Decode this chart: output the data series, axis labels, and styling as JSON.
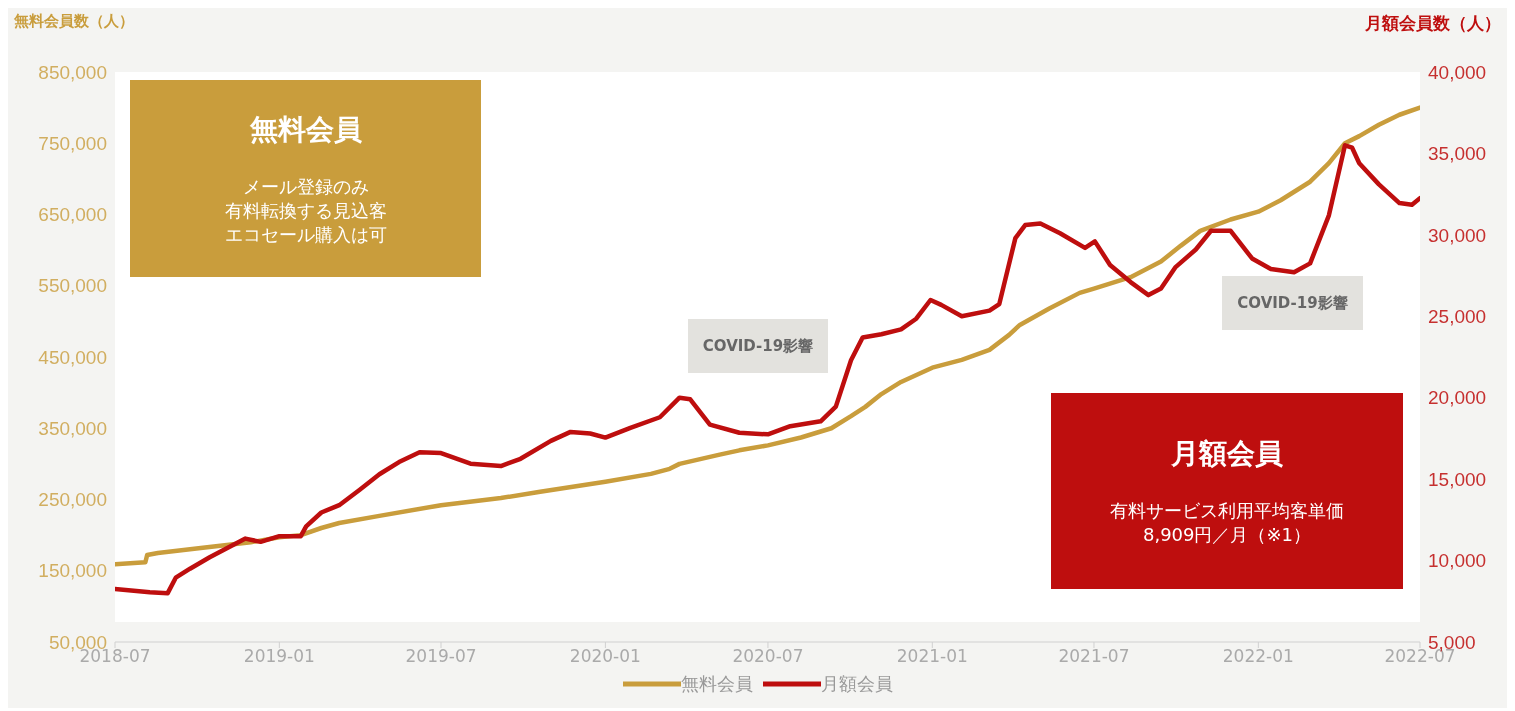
{
  "chart_data": {
    "type": "line",
    "ylabel": "無料会員数（人）",
    "y2label": "月額会員数（人）",
    "xlim": [
      "2018-07",
      "2022-07"
    ],
    "xticks": [
      "2018-07",
      "2019-01",
      "2019-07",
      "2020-01",
      "2020-07",
      "2021-01",
      "2021-07",
      "2022-01",
      "2022-07"
    ],
    "ylim": [
      50000,
      850000
    ],
    "yticks": [
      {
        "value": 50000,
        "label": "50,000"
      },
      {
        "value": 150000,
        "label": "150,000"
      },
      {
        "value": 250000,
        "label": "250,000"
      },
      {
        "value": 350000,
        "label": "350,000"
      },
      {
        "value": 450000,
        "label": "450,000"
      },
      {
        "value": 550000,
        "label": "550,000"
      },
      {
        "value": 650000,
        "label": "650,000"
      },
      {
        "value": 750000,
        "label": "750,000"
      },
      {
        "value": 850000,
        "label": "850,000"
      }
    ],
    "y2lim": [
      5000,
      40000
    ],
    "y2ticks": [
      {
        "value": 5000,
        "label": "5,000"
      },
      {
        "value": 10000,
        "label": "10,000"
      },
      {
        "value": 15000,
        "label": "15,000"
      },
      {
        "value": 20000,
        "label": "20,000"
      },
      {
        "value": 25000,
        "label": "25,000"
      },
      {
        "value": 30000,
        "label": "30,000"
      },
      {
        "value": 35000,
        "label": "35,000"
      },
      {
        "value": 40000,
        "label": "40,000"
      }
    ],
    "legend": "bottom",
    "marker": "none",
    "line_style": "solid",
    "annotations": [
      "無料会員",
      "メール登録のみ",
      "有料転換する見込客",
      "エコセール購入は可",
      "COVID-19影響",
      "COVID-19影響",
      "月額会員",
      "有料サービス利用平均客単価",
      "8,909円／月（※1）"
    ],
    "series": [
      {
        "name": "無料会員",
        "color": "#c99d3c",
        "x": [
          "2018-07-01",
          "2018-08-04",
          "2018-08-06",
          "2018-08-18",
          "2018-10-05",
          "2018-11-30",
          "2019-01-01",
          "2019-01-25",
          "2019-02-17",
          "2019-03-09",
          "2019-04-23",
          "2019-07-01",
          "2019-09-06",
          "2019-10-20",
          "2020-01-01",
          "2020-02-21",
          "2020-03-13",
          "2020-03-24",
          "2020-05-08",
          "2020-05-30",
          "2020-07-01",
          "2020-08-07",
          "2020-09-10",
          "2020-10-02",
          "2020-10-18",
          "2020-11-05",
          "2020-11-27",
          "2021-01-01",
          "2021-02-03",
          "2021-03-06",
          "2021-03-28",
          "2021-04-09",
          "2021-05-12",
          "2021-06-15",
          "2021-07-01",
          "2021-08-11",
          "2021-09-14",
          "2021-10-06",
          "2021-10-28",
          "2021-12-01",
          "2022-01-01",
          "2022-01-26",
          "2022-02-28",
          "2022-03-21",
          "2022-04-08",
          "2022-04-24",
          "2022-05-16",
          "2022-06-08",
          "2022-07-01"
        ],
        "values": [
          159000,
          162000,
          172000,
          175000,
          182000,
          190000,
          197000,
          200000,
          210000,
          217000,
          227000,
          242000,
          252000,
          261000,
          275000,
          286000,
          293000,
          300000,
          313000,
          319000,
          326000,
          337000,
          350000,
          367000,
          380000,
          398000,
          415000,
          435000,
          446000,
          460000,
          481000,
          495000,
          518000,
          540000,
          546000,
          562000,
          584000,
          606000,
          627000,
          643000,
          654000,
          670000,
          696000,
          722000,
          750000,
          760000,
          776000,
          790000,
          800000
        ]
      },
      {
        "name": "月額会員",
        "color": "#be0e0e",
        "axis": "y2",
        "x": [
          "2018-07-01",
          "2018-08-09",
          "2018-08-29",
          "2018-09-07",
          "2018-09-23",
          "2018-10-15",
          "2018-11-08",
          "2018-11-24",
          "2018-12-11",
          "2019-01-01",
          "2019-01-25",
          "2019-01-31",
          "2019-02-17",
          "2019-03-09",
          "2019-04-01",
          "2019-04-23",
          "2019-05-15",
          "2019-06-07",
          "2019-07-01",
          "2019-08-03",
          "2019-09-06",
          "2019-09-28",
          "2019-11-01",
          "2019-11-23",
          "2019-12-15",
          "2020-01-01",
          "2020-01-29",
          "2020-03-02",
          "2020-03-24",
          "2020-04-05",
          "2020-04-27",
          "2020-05-30",
          "2020-07-01",
          "2020-07-26",
          "2020-08-29",
          "2020-09-15",
          "2020-10-02",
          "2020-10-15",
          "2020-11-05",
          "2020-11-27",
          "2020-12-14",
          "2020-12-30",
          "2021-01-11",
          "2021-02-03",
          "2021-03-06",
          "2021-03-17",
          "2021-04-04",
          "2021-04-15",
          "2021-05-02",
          "2021-05-24",
          "2021-06-21",
          "2021-07-02",
          "2021-07-19",
          "2021-08-11",
          "2021-08-31",
          "2021-09-14",
          "2021-09-30",
          "2021-10-23",
          "2021-11-09",
          "2021-12-01",
          "2021-12-25",
          "2022-01-15",
          "2022-02-10",
          "2022-02-28",
          "2022-03-21",
          "2022-04-08",
          "2022-04-16",
          "2022-04-24",
          "2022-05-16",
          "2022-06-08",
          "2022-06-22",
          "2022-07-01"
        ],
        "values": [
          8250,
          8050,
          8000,
          8950,
          9500,
          10200,
          10900,
          11350,
          11150,
          11500,
          11500,
          12100,
          12950,
          13400,
          14350,
          15300,
          16050,
          16650,
          16600,
          15950,
          15800,
          16250,
          17350,
          17900,
          17800,
          17550,
          18150,
          18800,
          20000,
          19900,
          18350,
          17850,
          17750,
          18250,
          18550,
          19450,
          22300,
          23700,
          23900,
          24200,
          24850,
          26000,
          25700,
          25000,
          25350,
          25750,
          29800,
          30600,
          30700,
          30100,
          29200,
          29600,
          28150,
          27100,
          26300,
          26700,
          28000,
          29100,
          30250,
          30250,
          28550,
          27900,
          27700,
          28250,
          31200,
          35500,
          35350,
          34400,
          33100,
          31950,
          31850,
          32250
        ]
      }
    ]
  }
}
